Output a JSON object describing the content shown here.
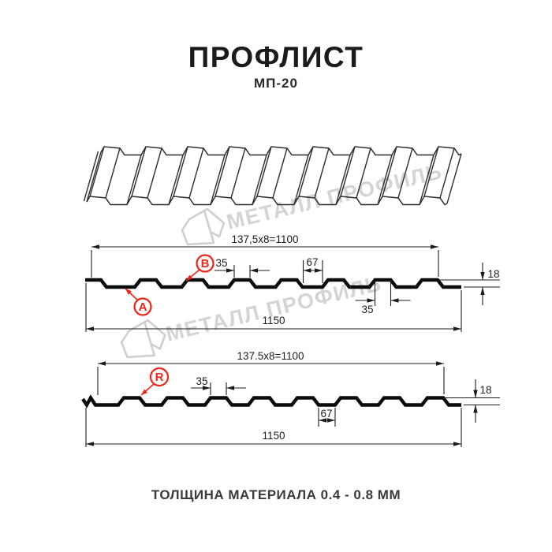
{
  "header": {
    "title": "ПРОФЛИСТ",
    "subtitle": "МП-20"
  },
  "watermark": {
    "text": "МЕТАЛЛ ПРОФИЛЬ",
    "logo": "metal-profil-logo"
  },
  "profile_top": {
    "label_a": "A",
    "label_b": "B",
    "dim_pitch": "137,5x8=1100",
    "dim_rib_top": "35",
    "dim_valley": "67",
    "dim_rib_bottom": "35",
    "dim_height": "18",
    "dim_total": "1150"
  },
  "profile_bottom": {
    "label_r": "R",
    "dim_pitch": "137.5x8=1100",
    "dim_rib_top": "35",
    "dim_valley": "67",
    "dim_height": "18",
    "dim_total": "1150"
  },
  "footer": {
    "thickness_note": "ТОЛЩИНА МАТЕРИАЛА 0.4 - 0.8 ММ"
  },
  "colors": {
    "accent": "#ee2418",
    "line": "#111111",
    "watermark": "#d4d4d4"
  }
}
